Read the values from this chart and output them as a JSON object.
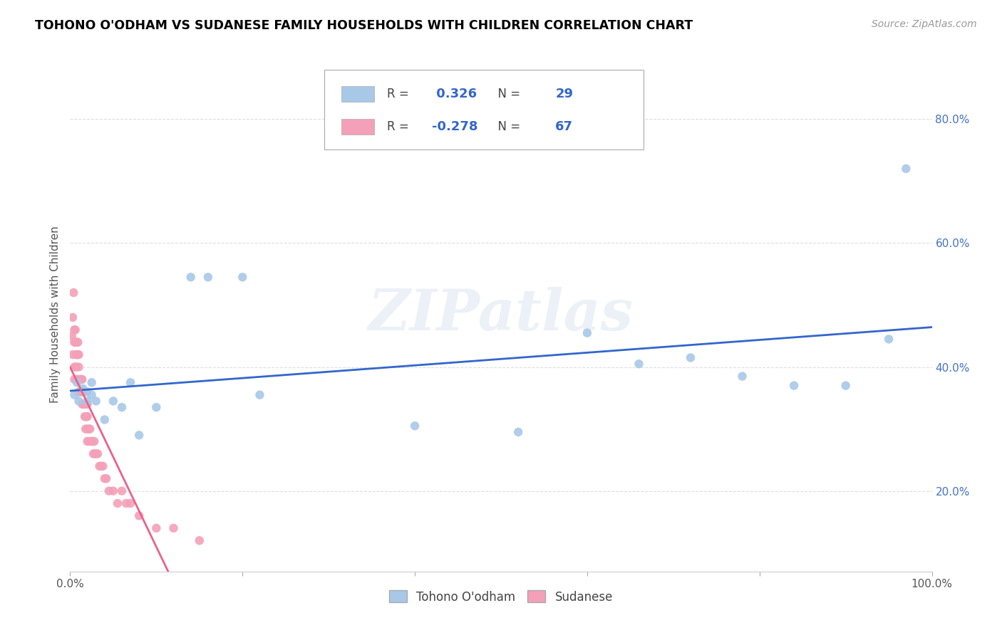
{
  "title": "TOHONO O'ODHAM VS SUDANESE FAMILY HOUSEHOLDS WITH CHILDREN CORRELATION CHART",
  "source": "Source: ZipAtlas.com",
  "ylabel": "Family Households with Children",
  "xlim": [
    0.0,
    1.0
  ],
  "ylim": [
    0.07,
    0.9
  ],
  "xtick_labels": [
    "0.0%",
    "",
    "",
    "",
    "",
    "100.0%"
  ],
  "xtick_vals": [
    0.0,
    0.2,
    0.4,
    0.6,
    0.8,
    1.0
  ],
  "ytick_labels": [
    "20.0%",
    "40.0%",
    "60.0%",
    "80.0%"
  ],
  "ytick_vals": [
    0.2,
    0.4,
    0.6,
    0.8
  ],
  "r_tohono": 0.326,
  "n_tohono": 29,
  "r_sudanese": -0.278,
  "n_sudanese": 67,
  "tohono_color": "#a8c8e8",
  "sudanese_color": "#f4a0b8",
  "trendline_tohono_color": "#3366cc",
  "trendline_sudanese_color": "#e8638a",
  "watermark": "ZIPatlas",
  "legend_box_color": "#cccccc",
  "tohono_x": [
    0.005,
    0.008,
    0.01,
    0.015,
    0.02,
    0.02,
    0.025,
    0.025,
    0.03,
    0.04,
    0.05,
    0.06,
    0.07,
    0.08,
    0.1,
    0.14,
    0.16,
    0.2,
    0.22,
    0.4,
    0.52,
    0.6,
    0.66,
    0.72,
    0.78,
    0.84,
    0.9,
    0.95,
    0.97
  ],
  "tohono_y": [
    0.355,
    0.375,
    0.345,
    0.365,
    0.345,
    0.36,
    0.375,
    0.355,
    0.345,
    0.315,
    0.345,
    0.335,
    0.375,
    0.29,
    0.335,
    0.545,
    0.545,
    0.545,
    0.355,
    0.305,
    0.295,
    0.455,
    0.405,
    0.415,
    0.385,
    0.37,
    0.37,
    0.445,
    0.72
  ],
  "sudanese_x": [
    0.002,
    0.003,
    0.003,
    0.004,
    0.005,
    0.005,
    0.005,
    0.005,
    0.006,
    0.006,
    0.007,
    0.007,
    0.007,
    0.008,
    0.008,
    0.008,
    0.009,
    0.009,
    0.009,
    0.01,
    0.01,
    0.01,
    0.012,
    0.012,
    0.013,
    0.013,
    0.014,
    0.014,
    0.015,
    0.015,
    0.016,
    0.016,
    0.017,
    0.017,
    0.018,
    0.018,
    0.018,
    0.019,
    0.02,
    0.02,
    0.02,
    0.02,
    0.022,
    0.022,
    0.023,
    0.025,
    0.026,
    0.027,
    0.028,
    0.029,
    0.03,
    0.032,
    0.034,
    0.036,
    0.038,
    0.04,
    0.042,
    0.045,
    0.05,
    0.055,
    0.06,
    0.065,
    0.07,
    0.08,
    0.1,
    0.12,
    0.15
  ],
  "sudanese_y": [
    0.45,
    0.48,
    0.42,
    0.52,
    0.46,
    0.44,
    0.4,
    0.38,
    0.46,
    0.44,
    0.44,
    0.42,
    0.4,
    0.44,
    0.42,
    0.38,
    0.44,
    0.42,
    0.38,
    0.42,
    0.4,
    0.36,
    0.38,
    0.36,
    0.38,
    0.36,
    0.38,
    0.34,
    0.36,
    0.34,
    0.36,
    0.34,
    0.36,
    0.32,
    0.34,
    0.32,
    0.3,
    0.32,
    0.34,
    0.32,
    0.3,
    0.28,
    0.3,
    0.28,
    0.3,
    0.28,
    0.28,
    0.26,
    0.28,
    0.26,
    0.26,
    0.26,
    0.24,
    0.24,
    0.24,
    0.22,
    0.22,
    0.2,
    0.2,
    0.18,
    0.2,
    0.18,
    0.18,
    0.16,
    0.14,
    0.14,
    0.12
  ]
}
